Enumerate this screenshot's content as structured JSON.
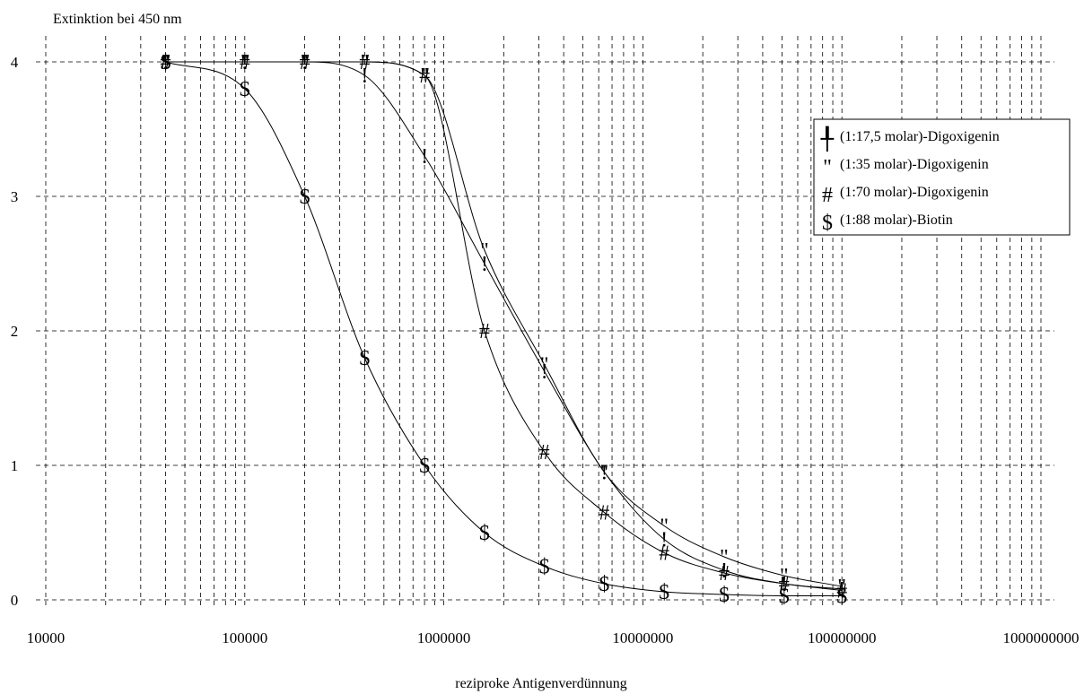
{
  "chart_data": {
    "type": "line",
    "title": "",
    "ylabel": "Extinktion bei 450 nm",
    "xlabel": "reziproke Antigenverdünnung",
    "xscale": "log",
    "xlim": [
      10000,
      1000000000
    ],
    "ylim": [
      0,
      4
    ],
    "x_ticks": [
      "10000",
      "100000",
      "1000000",
      "10000000",
      "100000000",
      "1000000000"
    ],
    "y_ticks": [
      "0",
      "1",
      "2",
      "3",
      "4"
    ],
    "grid": true,
    "legend_position": "right",
    "x": [
      40000,
      100000,
      200000,
      400000,
      800000,
      1600000,
      3200000,
      6400000,
      12800000,
      25600000,
      51200000,
      100000000
    ],
    "series": [
      {
        "name": "(1:17,5 molar)-Digoxigenin",
        "marker": "!",
        "legend_marker": "╀",
        "values": [
          4.0,
          4.0,
          4.0,
          3.9,
          3.3,
          2.5,
          1.7,
          0.95,
          0.45,
          0.22,
          0.12,
          0.08
        ]
      },
      {
        "name": "(1:35 molar)-Digoxigenin",
        "marker": "\"",
        "legend_marker": "\"",
        "values": [
          4.0,
          4.0,
          4.0,
          4.0,
          3.9,
          2.6,
          1.75,
          0.95,
          0.55,
          0.32,
          0.18,
          0.1
        ]
      },
      {
        "name": "(1:70 molar)-Digoxigenin",
        "marker": "#",
        "legend_marker": "#",
        "values": [
          4.0,
          4.0,
          4.0,
          4.0,
          3.9,
          2.0,
          1.1,
          0.65,
          0.35,
          0.2,
          0.12,
          0.07
        ]
      },
      {
        "name": "(1:88 molar)-Biotin",
        "marker": "$",
        "legend_marker": "$",
        "values": [
          4.0,
          3.8,
          3.0,
          1.8,
          1.0,
          0.5,
          0.25,
          0.12,
          0.06,
          0.04,
          0.03,
          0.03
        ]
      }
    ]
  }
}
